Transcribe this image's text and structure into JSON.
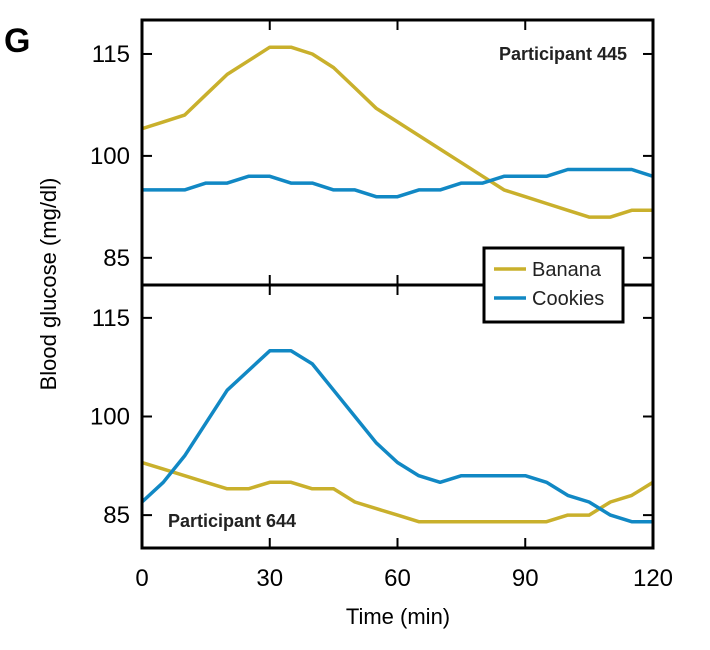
{
  "panel_label": "G",
  "colors": {
    "banana": "#c9b02c",
    "cookies": "#1188c4"
  },
  "chart_data": [
    {
      "type": "line",
      "annotation": "Participant 445",
      "xlabel": "Time (min)",
      "ylabel": "Blood glucose (mg/dl)",
      "xlim": [
        0,
        120
      ],
      "ylim": [
        81,
        120
      ],
      "yticks": [
        85,
        100,
        115
      ],
      "x": [
        0,
        5,
        10,
        15,
        20,
        25,
        30,
        35,
        40,
        45,
        50,
        55,
        60,
        65,
        70,
        75,
        80,
        85,
        90,
        95,
        100,
        105,
        110,
        115,
        120
      ],
      "series": [
        {
          "name": "Banana",
          "color": "#c9b02c",
          "values": [
            104,
            105,
            106,
            109,
            112,
            114,
            116,
            116,
            115,
            113,
            110,
            107,
            105,
            103,
            101,
            99,
            97,
            95,
            94,
            93,
            92,
            91,
            91,
            92,
            92
          ]
        },
        {
          "name": "Cookies",
          "color": "#1188c4",
          "values": [
            95,
            95,
            95,
            96,
            96,
            97,
            97,
            96,
            96,
            95,
            95,
            94,
            94,
            95,
            95,
            96,
            96,
            97,
            97,
            97,
            98,
            98,
            98,
            98,
            97
          ]
        }
      ]
    },
    {
      "type": "line",
      "annotation": "Participant 644",
      "xlabel": "Time (min)",
      "ylabel": "Blood glucose (mg/dl)",
      "xlim": [
        0,
        120
      ],
      "ylim": [
        80,
        120
      ],
      "yticks": [
        85,
        100,
        115
      ],
      "xticks": [
        0,
        30,
        60,
        90,
        120
      ],
      "x": [
        0,
        5,
        10,
        15,
        20,
        25,
        30,
        35,
        40,
        45,
        50,
        55,
        60,
        65,
        70,
        75,
        80,
        85,
        90,
        95,
        100,
        105,
        110,
        115,
        120
      ],
      "series": [
        {
          "name": "Banana",
          "color": "#c9b02c",
          "values": [
            93,
            92,
            91,
            90,
            89,
            89,
            90,
            90,
            89,
            89,
            87,
            86,
            85,
            84,
            84,
            84,
            84,
            84,
            84,
            84,
            85,
            85,
            87,
            88,
            90
          ]
        },
        {
          "name": "Cookies",
          "color": "#1188c4",
          "values": [
            87,
            90,
            94,
            99,
            104,
            107,
            110,
            110,
            108,
            104,
            100,
            96,
            93,
            91,
            90,
            91,
            91,
            91,
            91,
            90,
            88,
            87,
            85,
            84,
            84
          ]
        }
      ]
    }
  ],
  "legend": [
    {
      "label": "Banana",
      "color": "#c9b02c"
    },
    {
      "label": "Cookies",
      "color": "#1188c4"
    }
  ]
}
